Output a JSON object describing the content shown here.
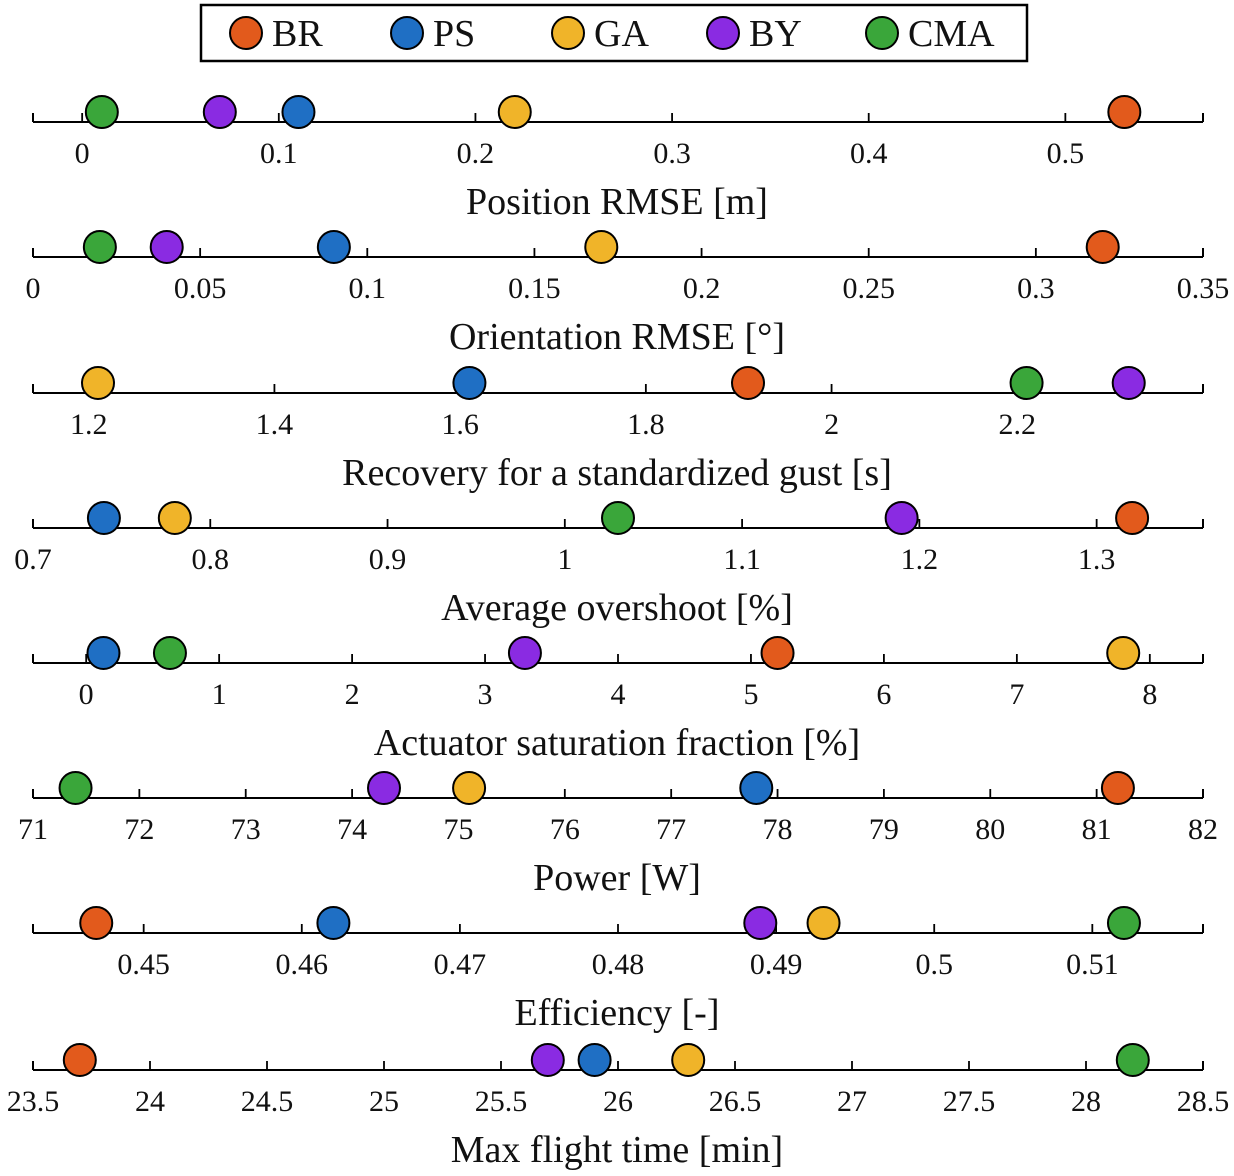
{
  "chart_data": {
    "type": "scatter",
    "legend": {
      "placement": "top-center",
      "entries": [
        {
          "key": "BR",
          "label": "BR",
          "color": "#e25a1c"
        },
        {
          "key": "PS",
          "label": "PS",
          "color": "#1f6fc4"
        },
        {
          "key": "GA",
          "label": "GA",
          "color": "#f0b429"
        },
        {
          "key": "BY",
          "label": "BY",
          "color": "#8a2be2"
        },
        {
          "key": "CMA",
          "label": "CMA",
          "color": "#3aa63a"
        }
      ]
    },
    "panels": [
      {
        "xlabel": "Position RMSE [m]",
        "xlim": [
          -0.025,
          0.57
        ],
        "ticks": [
          0,
          0.1,
          0.2,
          0.3,
          0.4,
          0.5
        ],
        "tick_labels": [
          "0",
          "0.1",
          "0.2",
          "0.3",
          "0.4",
          "0.5"
        ],
        "values": {
          "BR": 0.53,
          "PS": 0.11,
          "GA": 0.22,
          "BY": 0.07,
          "CMA": 0.01
        }
      },
      {
        "xlabel": "Orientation RMSE [°]",
        "xlim": [
          0,
          0.35
        ],
        "ticks": [
          0,
          0.05,
          0.1,
          0.15,
          0.2,
          0.25,
          0.3,
          0.35
        ],
        "tick_labels": [
          "0",
          "0.05",
          "0.1",
          "0.15",
          "0.2",
          "0.25",
          "0.3",
          "0.35"
        ],
        "values": {
          "BR": 0.32,
          "PS": 0.09,
          "GA": 0.17,
          "BY": 0.04,
          "CMA": 0.02
        }
      },
      {
        "xlabel": "Recovery for a standardized gust [s]",
        "xlim": [
          1.14,
          2.4
        ],
        "ticks": [
          1.2,
          1.4,
          1.6,
          1.8,
          2,
          2.2
        ],
        "tick_labels": [
          "1.2",
          "1.4",
          "1.6",
          "1.8",
          "2",
          "2.2"
        ],
        "values": {
          "BR": 1.91,
          "PS": 1.61,
          "GA": 1.21,
          "BY": 2.32,
          "CMA": 2.21
        }
      },
      {
        "xlabel": "Average overshoot [%]",
        "xlim": [
          0.7,
          1.36
        ],
        "ticks": [
          0.7,
          0.8,
          0.9,
          1,
          1.1,
          1.2,
          1.3
        ],
        "tick_labels": [
          "0.7",
          "0.8",
          "0.9",
          "1",
          "1.1",
          "1.2",
          "1.3"
        ],
        "values": {
          "BR": 1.32,
          "PS": 0.74,
          "GA": 0.78,
          "BY": 1.19,
          "CMA": 1.03
        }
      },
      {
        "xlabel": "Actuator saturation fraction [%]",
        "xlim": [
          -0.4,
          8.4
        ],
        "ticks": [
          0,
          1,
          2,
          3,
          4,
          5,
          6,
          7,
          8
        ],
        "tick_labels": [
          "0",
          "1",
          "2",
          "3",
          "4",
          "5",
          "6",
          "7",
          "8"
        ],
        "values": {
          "BR": 5.2,
          "PS": 0.13,
          "GA": 7.8,
          "BY": 3.3,
          "CMA": 0.63
        }
      },
      {
        "xlabel": "Power [W]",
        "xlim": [
          71,
          82
        ],
        "ticks": [
          71,
          72,
          73,
          74,
          75,
          76,
          77,
          78,
          79,
          80,
          81,
          82
        ],
        "tick_labels": [
          "71",
          "72",
          "73",
          "74",
          "75",
          "76",
          "77",
          "78",
          "79",
          "80",
          "81",
          "82"
        ],
        "values": {
          "BR": 81.2,
          "PS": 77.8,
          "GA": 75.1,
          "BY": 74.3,
          "CMA": 71.4
        }
      },
      {
        "xlabel": "Efficiency [-]",
        "xlim": [
          0.443,
          0.517
        ],
        "ticks": [
          0.45,
          0.46,
          0.47,
          0.48,
          0.49,
          0.5,
          0.51
        ],
        "tick_labels": [
          "0.45",
          "0.46",
          "0.47",
          "0.48",
          "0.49",
          "0.5",
          "0.51"
        ],
        "values": {
          "BR": 0.447,
          "PS": 0.462,
          "GA": 0.493,
          "BY": 0.489,
          "CMA": 0.512
        }
      },
      {
        "xlabel": "Max flight time [min]",
        "xlim": [
          23.5,
          28.5
        ],
        "ticks": [
          23.5,
          24,
          24.5,
          25,
          25.5,
          26,
          26.5,
          27,
          27.5,
          28,
          28.5
        ],
        "tick_labels": [
          "23.5",
          "24",
          "24.5",
          "25",
          "25.5",
          "26",
          "26.5",
          "27",
          "27.5",
          "28",
          "28.5"
        ],
        "values": {
          "BR": 23.7,
          "PS": 25.9,
          "GA": 26.3,
          "BY": 25.7,
          "CMA": 28.2
        }
      }
    ]
  }
}
